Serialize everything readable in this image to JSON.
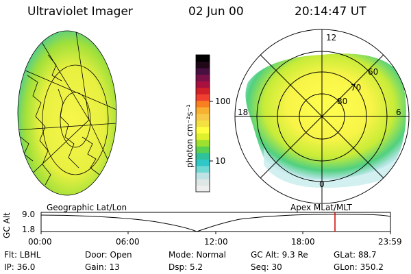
{
  "header": {
    "instrument": "Ultraviolet Imager",
    "date": "02 Jun 00",
    "time": "20:14:47 UT"
  },
  "colorbar": {
    "label": "photon cm⁻²s⁻¹",
    "ticks": [
      "100",
      "10"
    ],
    "colors": [
      "#eeeeee",
      "#dfe6e6",
      "#bfe2e4",
      "#6fd8d2",
      "#30c8c6",
      "#2fc19a",
      "#5ad050",
      "#9ee030",
      "#dff02c",
      "#ffff40",
      "#f4e040",
      "#f8c848",
      "#f8b030",
      "#f88020",
      "#f04030",
      "#d0202a",
      "#a81040",
      "#7a1048",
      "#481040",
      "#200818",
      "#000000"
    ]
  },
  "polar_map": {
    "mlt_labels": [
      "12",
      "18",
      "6",
      "0"
    ],
    "lat_labels": [
      "60",
      "70",
      "80"
    ]
  },
  "frames": {
    "left_caption": "Geographic Lat/Lon",
    "right_caption": "Apex MLat/MLT"
  },
  "altitude_plot": {
    "ylabel": "GC Alt",
    "yticks": [
      "9.0",
      "1.8"
    ],
    "xticks": [
      "00:00",
      "06:00",
      "12:00",
      "18:00",
      "23:59"
    ],
    "marker_color": "#d00000"
  },
  "info": {
    "filter": "Flt: LBHL",
    "door": "Door: Open",
    "mode": "Mode: Normal",
    "gc_alt": "GC Alt: 9.3 Re",
    "glat": "GLat:  88.7",
    "ip": "IP: 36.0",
    "gain": "Gain: 13",
    "dsp": "Dsp:     5.2",
    "seq": "Seq: 30",
    "glon": "GLon: 350.2"
  }
}
